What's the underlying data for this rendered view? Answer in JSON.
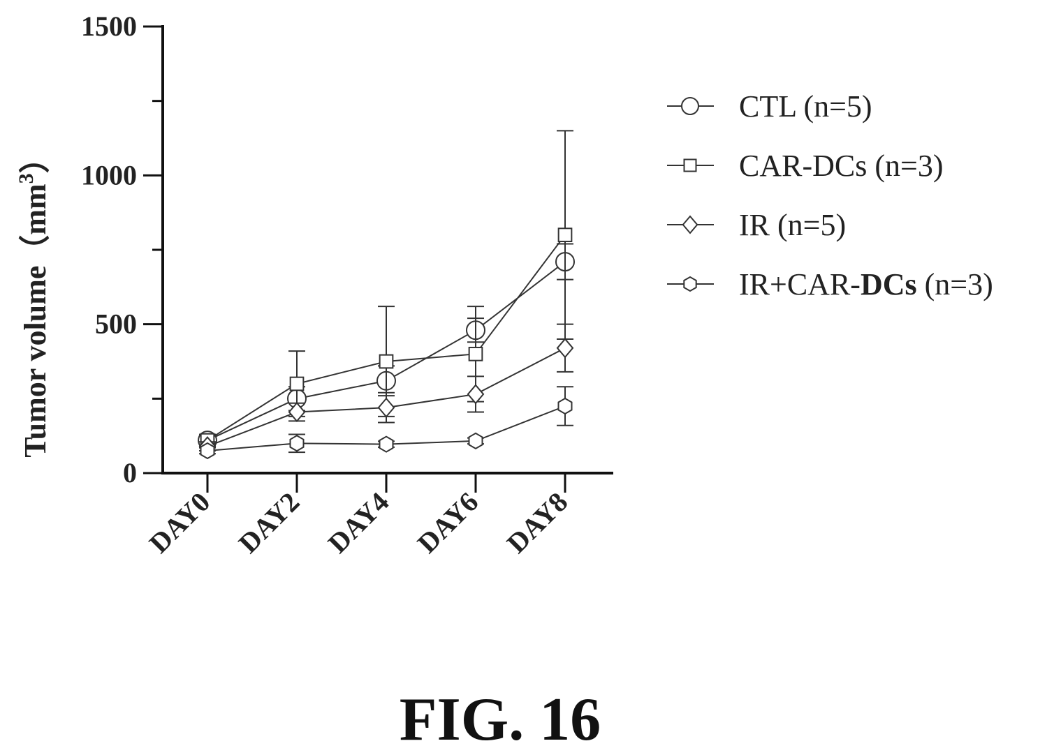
{
  "chart_data": {
    "type": "line",
    "title": "",
    "xlabel": "",
    "ylabel": "Tumor volume（mm",
    "ylabel_superscript": "3",
    "ylabel_close": "）",
    "ylim": [
      0,
      1500
    ],
    "yticks": [
      "0",
      "500",
      "1000",
      "1500"
    ],
    "categories": [
      "DAY0",
      "DAY2",
      "DAY4",
      "DAY6",
      "DAY8"
    ],
    "grid": false,
    "legend_position": "right",
    "series": [
      {
        "name": "CTL (n=5)",
        "marker": "circle",
        "values": [
          110,
          250,
          310,
          480,
          710
        ],
        "error": [
          20,
          40,
          50,
          40,
          60
        ]
      },
      {
        "name": "CAR-DCs (n=3)",
        "marker": "square",
        "values": [
          110,
          300,
          375,
          400,
          800
        ],
        "error": [
          20,
          110,
          185,
          160,
          350
        ]
      },
      {
        "name": "IR (n=5)",
        "marker": "diamond",
        "values": [
          90,
          205,
          220,
          265,
          420
        ],
        "error": [
          15,
          30,
          50,
          60,
          80
        ]
      },
      {
        "name": "IR+CAR-DCs (n=3)",
        "name_prefix": "IR+CAR-",
        "name_bold": "DCs",
        "name_suffix": " (n=3)",
        "marker": "hexagon",
        "values": [
          75,
          100,
          97,
          108,
          225
        ],
        "error": [
          10,
          30,
          10,
          10,
          65
        ]
      }
    ]
  },
  "figure": {
    "caption": "FIG. 16"
  }
}
